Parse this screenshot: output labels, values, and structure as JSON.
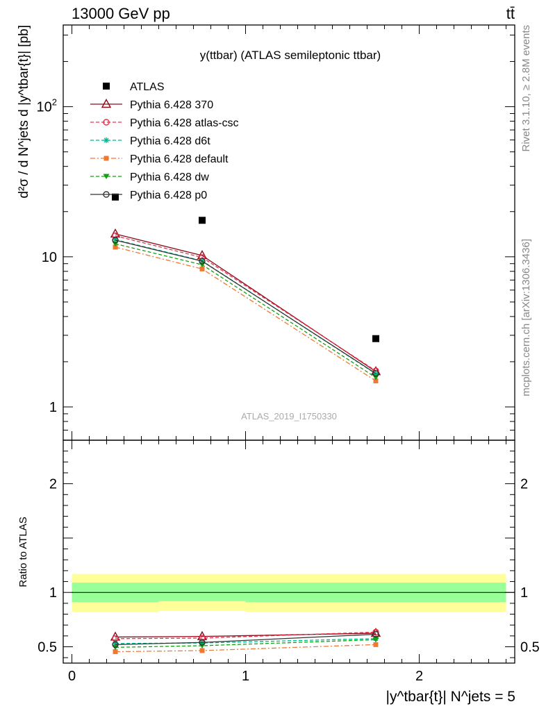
{
  "header": {
    "left": "13000 GeV pp",
    "right": "tt̄"
  },
  "side_text": {
    "rivet": "Rivet 3.1.10, ≥ 2.8M events",
    "mcplots": "mcplots.cern.ch [arXiv:1306.3436]"
  },
  "watermark": "ATLAS_2019_I1750330",
  "chart_data": [
    {
      "type": "line",
      "panel": "main",
      "title": "y(ttbar) (ATLAS semileptonic ttbar)",
      "ylabel": "d²σ / d N^jets d |y^tbar{t}| [pb]",
      "y_scale": "log",
      "ylim": [
        0.6,
        350
      ],
      "xlim": [
        -0.05,
        2.55
      ],
      "y_ticks": [
        {
          "value": 1,
          "label": "1"
        },
        {
          "value": 10,
          "label": "10"
        },
        {
          "value": 100,
          "label": "10^2"
        }
      ],
      "legend_placement": "top-left",
      "x": [
        0.25,
        0.75,
        1.75
      ],
      "data": {
        "name": "ATLAS",
        "points": [
          {
            "x": 0.25,
            "y": 25.0
          },
          {
            "x": 0.75,
            "y": 17.5
          },
          {
            "x": 1.75,
            "y": 2.85
          }
        ]
      },
      "series": [
        {
          "name": "Pythia 6.428 370",
          "color": "#8b0a1a",
          "marker": "triangle-open",
          "dash": "solid",
          "values": [
            14.2,
            10.2,
            1.72
          ]
        },
        {
          "name": "Pythia 6.428 atlas-csc",
          "color": "#e8304a",
          "marker": "circle-open",
          "dash": "dashed",
          "values": [
            13.8,
            9.9,
            1.74
          ]
        },
        {
          "name": "Pythia 6.428 d6t",
          "color": "#00b38c",
          "marker": "star",
          "dash": "dashed",
          "values": [
            13.0,
            9.4,
            1.66
          ]
        },
        {
          "name": "Pythia 6.428 default",
          "color": "#f07830",
          "marker": "square",
          "dash": "dashdot",
          "values": [
            11.6,
            8.3,
            1.49
          ]
        },
        {
          "name": "Pythia 6.428 dw",
          "color": "#10a010",
          "marker": "triangle-down",
          "dash": "dashed",
          "values": [
            12.2,
            8.85,
            1.57
          ]
        },
        {
          "name": "Pythia 6.428 p0",
          "color": "#333333",
          "marker": "circle-open",
          "dash": "solid",
          "values": [
            12.9,
            9.35,
            1.67
          ]
        }
      ]
    },
    {
      "type": "line",
      "panel": "ratio",
      "ylabel": "Ratio to ATLAS",
      "xlabel": "|y^tbar{t}| N^jets = 5",
      "ylim": [
        0.35,
        2.4
      ],
      "xlim": [
        -0.05,
        2.55
      ],
      "y_ticks": [
        {
          "value": 0.5,
          "label": "0.5"
        },
        {
          "value": 1,
          "label": "1"
        },
        {
          "value": 2,
          "label": "2"
        }
      ],
      "x_ticks": [
        {
          "value": 0,
          "label": "0"
        },
        {
          "value": 1,
          "label": "1"
        },
        {
          "value": 2,
          "label": "2"
        }
      ],
      "bands": [
        {
          "x0": 0.0,
          "x1": 0.5,
          "inner": [
            0.91,
            1.09
          ],
          "outer": [
            0.82,
            1.17
          ]
        },
        {
          "x0": 0.5,
          "x1": 1.0,
          "inner": [
            0.92,
            1.09
          ],
          "outer": [
            0.83,
            1.17
          ]
        },
        {
          "x0": 1.0,
          "x1": 2.5,
          "inner": [
            0.91,
            1.09
          ],
          "outer": [
            0.82,
            1.17
          ]
        }
      ],
      "band_colors": {
        "inner": "#99ff99",
        "outer": "#ffff99"
      },
      "x": [
        0.25,
        0.75,
        1.75
      ],
      "series": [
        {
          "name": "Pythia 6.428 370",
          "color": "#8b0a1a",
          "marker": "triangle-open",
          "dash": "solid",
          "values": [
            0.59,
            0.595,
            0.625
          ]
        },
        {
          "name": "Pythia 6.428 atlas-csc",
          "color": "#e8304a",
          "marker": "circle-open",
          "dash": "dashed",
          "values": [
            0.575,
            0.58,
            0.635
          ]
        },
        {
          "name": "Pythia 6.428 d6t",
          "color": "#00b38c",
          "marker": "star",
          "dash": "dashed",
          "values": [
            0.53,
            0.535,
            0.575
          ]
        },
        {
          "name": "Pythia 6.428 default",
          "color": "#f07830",
          "marker": "square",
          "dash": "dashdot",
          "values": [
            0.455,
            0.465,
            0.52
          ]
        },
        {
          "name": "Pythia 6.428 dw",
          "color": "#10a010",
          "marker": "triangle-down",
          "dash": "dashed",
          "values": [
            0.495,
            0.51,
            0.565
          ]
        },
        {
          "name": "Pythia 6.428 p0",
          "color": "#333333",
          "marker": "circle-open",
          "dash": "solid",
          "values": [
            0.52,
            0.54,
            0.615
          ]
        }
      ]
    }
  ]
}
